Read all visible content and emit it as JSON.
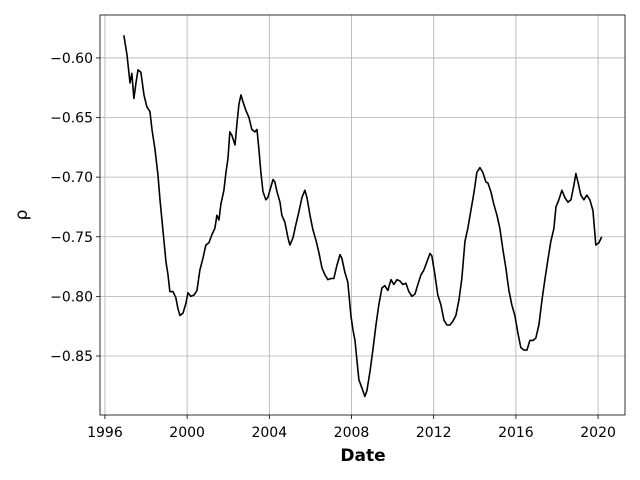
{
  "chart_data": {
    "type": "line",
    "x_label": "Date",
    "y_label": "ρ",
    "grid": true,
    "xlim": [
      1995.76,
      2021.31
    ],
    "xticks": [
      1996,
      2000,
      2004,
      2008,
      2012,
      2016,
      2020
    ],
    "ylim": [
      -0.8995,
      -0.564
    ],
    "yticks": [
      {
        "value": -0.6,
        "label": "−0.60"
      },
      {
        "value": -0.65,
        "label": "−0.65"
      },
      {
        "value": -0.7,
        "label": "−0.70"
      },
      {
        "value": -0.75,
        "label": "−0.75"
      },
      {
        "value": -0.8,
        "label": "−0.80"
      },
      {
        "value": -0.85,
        "label": "−0.85"
      }
    ],
    "x": [
      1996.92,
      1997.07,
      1997.22,
      1997.31,
      1997.41,
      1997.51,
      1997.61,
      1997.75,
      1997.9,
      1998.04,
      1998.19,
      1998.29,
      1998.43,
      1998.58,
      1998.68,
      1998.82,
      1998.97,
      1999.07,
      1999.16,
      1999.31,
      1999.45,
      1999.55,
      1999.65,
      1999.8,
      1999.94,
      2000.04,
      2000.18,
      2000.33,
      2000.48,
      2000.62,
      2000.77,
      2000.91,
      2001.06,
      2001.21,
      2001.35,
      2001.45,
      2001.55,
      2001.64,
      2001.79,
      2001.89,
      2001.99,
      2002.08,
      2002.18,
      2002.33,
      2002.42,
      2002.52,
      2002.62,
      2002.72,
      2002.86,
      2003.01,
      2003.15,
      2003.3,
      2003.4,
      2003.49,
      2003.59,
      2003.69,
      2003.83,
      2003.93,
      2004.03,
      2004.18,
      2004.27,
      2004.37,
      2004.52,
      2004.61,
      2004.76,
      2004.91,
      2005.0,
      2005.15,
      2005.29,
      2005.44,
      2005.59,
      2005.73,
      2005.83,
      2005.98,
      2006.12,
      2006.27,
      2006.41,
      2006.56,
      2006.71,
      2006.85,
      2007.0,
      2007.14,
      2007.29,
      2007.44,
      2007.53,
      2007.68,
      2007.82,
      2007.97,
      2008.07,
      2008.17,
      2008.26,
      2008.36,
      2008.51,
      2008.65,
      2008.75,
      2008.9,
      2009.04,
      2009.19,
      2009.33,
      2009.48,
      2009.62,
      2009.77,
      2009.92,
      2010.06,
      2010.21,
      2010.35,
      2010.5,
      2010.65,
      2010.79,
      2010.94,
      2011.09,
      2011.23,
      2011.38,
      2011.52,
      2011.67,
      2011.82,
      2011.91,
      2012.06,
      2012.2,
      2012.35,
      2012.5,
      2012.64,
      2012.79,
      2012.93,
      2013.08,
      2013.23,
      2013.37,
      2013.52,
      2013.66,
      2013.81,
      2013.96,
      2014.1,
      2014.25,
      2014.39,
      2014.54,
      2014.64,
      2014.78,
      2014.93,
      2015.08,
      2015.22,
      2015.37,
      2015.51,
      2015.66,
      2015.8,
      2015.95,
      2016.1,
      2016.24,
      2016.39,
      2016.54,
      2016.68,
      2016.83,
      2016.97,
      2017.12,
      2017.27,
      2017.41,
      2017.56,
      2017.7,
      2017.85,
      2017.95,
      2018.09,
      2018.24,
      2018.38,
      2018.53,
      2018.68,
      2018.82,
      2018.92,
      2019.02,
      2019.16,
      2019.31,
      2019.45,
      2019.6,
      2019.75,
      2019.89,
      2020.04,
      2020.18
    ],
    "series": [
      {
        "color": "#000000",
        "values": [
          -0.581,
          -0.597,
          -0.621,
          -0.613,
          -0.634,
          -0.621,
          -0.61,
          -0.612,
          -0.631,
          -0.641,
          -0.645,
          -0.66,
          -0.676,
          -0.698,
          -0.719,
          -0.744,
          -0.771,
          -0.782,
          -0.796,
          -0.796,
          -0.801,
          -0.81,
          -0.816,
          -0.814,
          -0.806,
          -0.797,
          -0.8,
          -0.799,
          -0.795,
          -0.778,
          -0.768,
          -0.757,
          -0.755,
          -0.748,
          -0.743,
          -0.732,
          -0.736,
          -0.723,
          -0.711,
          -0.696,
          -0.684,
          -0.662,
          -0.665,
          -0.673,
          -0.656,
          -0.639,
          -0.631,
          -0.637,
          -0.644,
          -0.65,
          -0.66,
          -0.662,
          -0.66,
          -0.676,
          -0.696,
          -0.712,
          -0.719,
          -0.717,
          -0.711,
          -0.702,
          -0.704,
          -0.712,
          -0.721,
          -0.732,
          -0.738,
          -0.751,
          -0.757,
          -0.751,
          -0.74,
          -0.729,
          -0.717,
          -0.711,
          -0.717,
          -0.732,
          -0.744,
          -0.753,
          -0.763,
          -0.776,
          -0.782,
          -0.786,
          -0.785,
          -0.785,
          -0.774,
          -0.765,
          -0.768,
          -0.78,
          -0.788,
          -0.816,
          -0.828,
          -0.837,
          -0.853,
          -0.87,
          -0.877,
          -0.884,
          -0.879,
          -0.863,
          -0.845,
          -0.824,
          -0.807,
          -0.793,
          -0.791,
          -0.795,
          -0.786,
          -0.79,
          -0.786,
          -0.787,
          -0.79,
          -0.789,
          -0.796,
          -0.8,
          -0.798,
          -0.79,
          -0.782,
          -0.778,
          -0.771,
          -0.764,
          -0.766,
          -0.782,
          -0.799,
          -0.807,
          -0.82,
          -0.824,
          -0.824,
          -0.821,
          -0.816,
          -0.803,
          -0.785,
          -0.754,
          -0.743,
          -0.728,
          -0.713,
          -0.696,
          -0.692,
          -0.696,
          -0.704,
          -0.705,
          -0.712,
          -0.723,
          -0.732,
          -0.743,
          -0.761,
          -0.776,
          -0.795,
          -0.807,
          -0.816,
          -0.831,
          -0.843,
          -0.845,
          -0.845,
          -0.837,
          -0.837,
          -0.835,
          -0.824,
          -0.803,
          -0.786,
          -0.769,
          -0.754,
          -0.743,
          -0.725,
          -0.719,
          -0.711,
          -0.717,
          -0.721,
          -0.719,
          -0.707,
          -0.697,
          -0.704,
          -0.715,
          -0.719,
          -0.715,
          -0.719,
          -0.728,
          -0.757,
          -0.755,
          -0.75
        ]
      }
    ]
  }
}
